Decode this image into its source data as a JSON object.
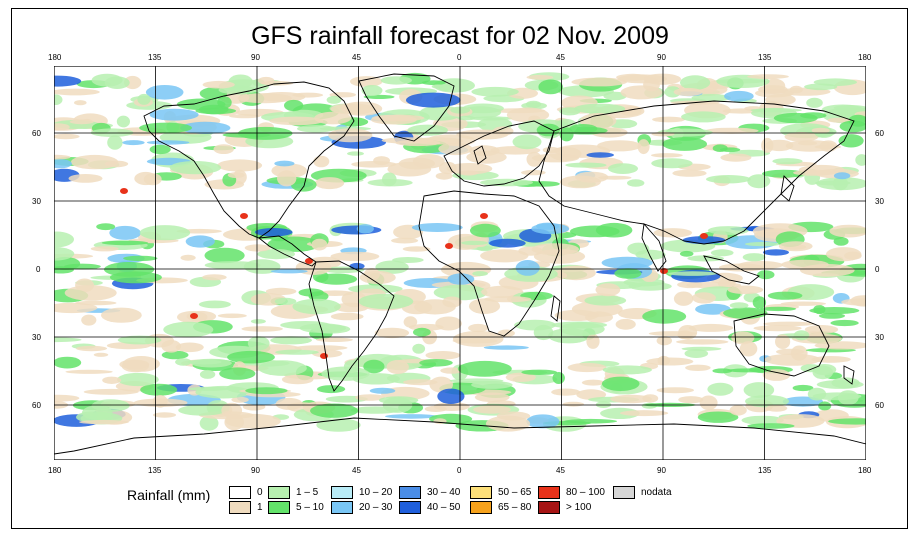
{
  "title": "GFS rainfall forecast for 02 Nov. 2009",
  "axes": {
    "lon_ticks": [
      "180",
      "135",
      "90",
      "45",
      "0",
      "45",
      "90",
      "135",
      "180"
    ],
    "lat_ticks": [
      "60",
      "30",
      "0",
      "30",
      "60"
    ]
  },
  "legend": {
    "title": "Rainfall (mm)",
    "items": [
      {
        "label": "0",
        "color": "#ffffff"
      },
      {
        "label": "1",
        "color": "#f0dcbf"
      },
      {
        "label": "1 – 5",
        "color": "#b7f0b0"
      },
      {
        "label": "5 – 10",
        "color": "#63e36a"
      },
      {
        "label": "10 – 20",
        "color": "#b9ecf7"
      },
      {
        "label": "20 – 30",
        "color": "#79c6f5"
      },
      {
        "label": "30 – 40",
        "color": "#4a8de6"
      },
      {
        "label": "40 – 50",
        "color": "#1f5fdc"
      },
      {
        "label": "50 – 65",
        "color": "#fde07a"
      },
      {
        "label": "65 – 80",
        "color": "#f6a21c"
      },
      {
        "label": "80 – 100",
        "color": "#e8321a"
      },
      {
        "label": "> 100",
        "color": "#a61414"
      },
      {
        "label": "nodata",
        "color": "#d6d6d6"
      }
    ]
  }
}
